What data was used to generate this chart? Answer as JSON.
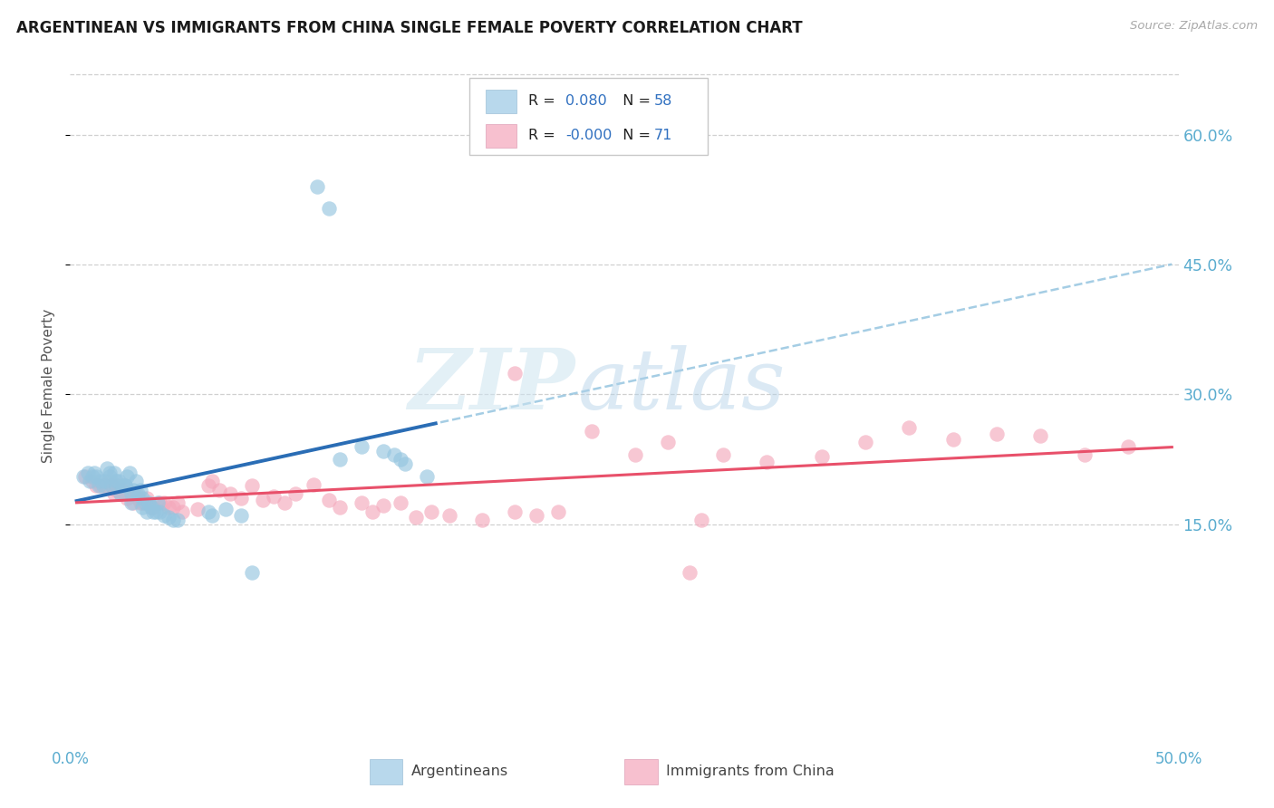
{
  "title": "ARGENTINEAN VS IMMIGRANTS FROM CHINA SINGLE FEMALE POVERTY CORRELATION CHART",
  "source": "Source: ZipAtlas.com",
  "ylabel": "Single Female Poverty",
  "ytick_values": [
    0.15,
    0.3,
    0.45,
    0.6
  ],
  "ytick_labels": [
    "15.0%",
    "30.0%",
    "45.0%",
    "60.0%"
  ],
  "xlim": [
    -0.003,
    0.503
  ],
  "ylim": [
    -0.07,
    0.69
  ],
  "plot_ylim": [
    -0.07,
    0.69
  ],
  "legend_r_blue": "0.080",
  "legend_n_blue": "58",
  "legend_r_pink": "-0.000",
  "legend_n_pink": "71",
  "blue_scatter_color": "#95c5e0",
  "pink_scatter_color": "#f4a9bc",
  "trendline_blue_solid_color": "#2a6db5",
  "trendline_blue_dash_color": "#95c5e0",
  "trendline_pink_color": "#e8506a",
  "bg_color": "#ffffff",
  "grid_color": "#d0d0d0",
  "axis_label_color": "#5aaccf",
  "legend_box_blue": "#b8d8ec",
  "legend_box_pink": "#f7c0cf",
  "blue_scatter_x": [
    0.003,
    0.005,
    0.006,
    0.007,
    0.008,
    0.009,
    0.01,
    0.011,
    0.012,
    0.013,
    0.014,
    0.015,
    0.015,
    0.016,
    0.017,
    0.018,
    0.018,
    0.019,
    0.02,
    0.021,
    0.022,
    0.022,
    0.023,
    0.024,
    0.025,
    0.025,
    0.026,
    0.027,
    0.028,
    0.029,
    0.03,
    0.03,
    0.031,
    0.032,
    0.033,
    0.034,
    0.035,
    0.036,
    0.037,
    0.038,
    0.04,
    0.042,
    0.044,
    0.046,
    0.06,
    0.062,
    0.068,
    0.075,
    0.08,
    0.11,
    0.115,
    0.12,
    0.13,
    0.14,
    0.145,
    0.148,
    0.15,
    0.16
  ],
  "blue_scatter_y": [
    0.205,
    0.21,
    0.2,
    0.205,
    0.21,
    0.205,
    0.195,
    0.2,
    0.195,
    0.2,
    0.215,
    0.21,
    0.205,
    0.195,
    0.21,
    0.195,
    0.2,
    0.2,
    0.185,
    0.195,
    0.195,
    0.195,
    0.205,
    0.21,
    0.175,
    0.185,
    0.19,
    0.2,
    0.185,
    0.19,
    0.18,
    0.17,
    0.175,
    0.165,
    0.175,
    0.17,
    0.165,
    0.165,
    0.175,
    0.165,
    0.16,
    0.158,
    0.155,
    0.155,
    0.165,
    0.16,
    0.168,
    0.16,
    0.095,
    0.54,
    0.515,
    0.225,
    0.24,
    0.235,
    0.23,
    0.225,
    0.22,
    0.205
  ],
  "pink_scatter_x": [
    0.004,
    0.007,
    0.009,
    0.011,
    0.013,
    0.015,
    0.016,
    0.017,
    0.018,
    0.019,
    0.02,
    0.021,
    0.022,
    0.023,
    0.024,
    0.025,
    0.026,
    0.027,
    0.028,
    0.029,
    0.03,
    0.032,
    0.034,
    0.035,
    0.038,
    0.04,
    0.042,
    0.044,
    0.046,
    0.048,
    0.055,
    0.06,
    0.062,
    0.065,
    0.07,
    0.075,
    0.08,
    0.085,
    0.09,
    0.095,
    0.1,
    0.108,
    0.115,
    0.12,
    0.13,
    0.135,
    0.14,
    0.148,
    0.155,
    0.162,
    0.17,
    0.185,
    0.2,
    0.21,
    0.22,
    0.235,
    0.255,
    0.27,
    0.285,
    0.295,
    0.315,
    0.34,
    0.36,
    0.38,
    0.4,
    0.42,
    0.44,
    0.46,
    0.48,
    0.2,
    0.28
  ],
  "pink_scatter_y": [
    0.205,
    0.2,
    0.195,
    0.195,
    0.195,
    0.2,
    0.195,
    0.185,
    0.19,
    0.195,
    0.185,
    0.19,
    0.185,
    0.18,
    0.188,
    0.185,
    0.175,
    0.185,
    0.18,
    0.175,
    0.175,
    0.18,
    0.17,
    0.17,
    0.175,
    0.175,
    0.17,
    0.17,
    0.175,
    0.165,
    0.168,
    0.195,
    0.2,
    0.19,
    0.185,
    0.18,
    0.195,
    0.178,
    0.182,
    0.175,
    0.185,
    0.196,
    0.178,
    0.17,
    0.175,
    0.165,
    0.172,
    0.175,
    0.158,
    0.165,
    0.16,
    0.155,
    0.165,
    0.16,
    0.165,
    0.258,
    0.23,
    0.245,
    0.155,
    0.23,
    0.222,
    0.228,
    0.245,
    0.262,
    0.248,
    0.255,
    0.252,
    0.23,
    0.24,
    0.325,
    0.095
  ]
}
